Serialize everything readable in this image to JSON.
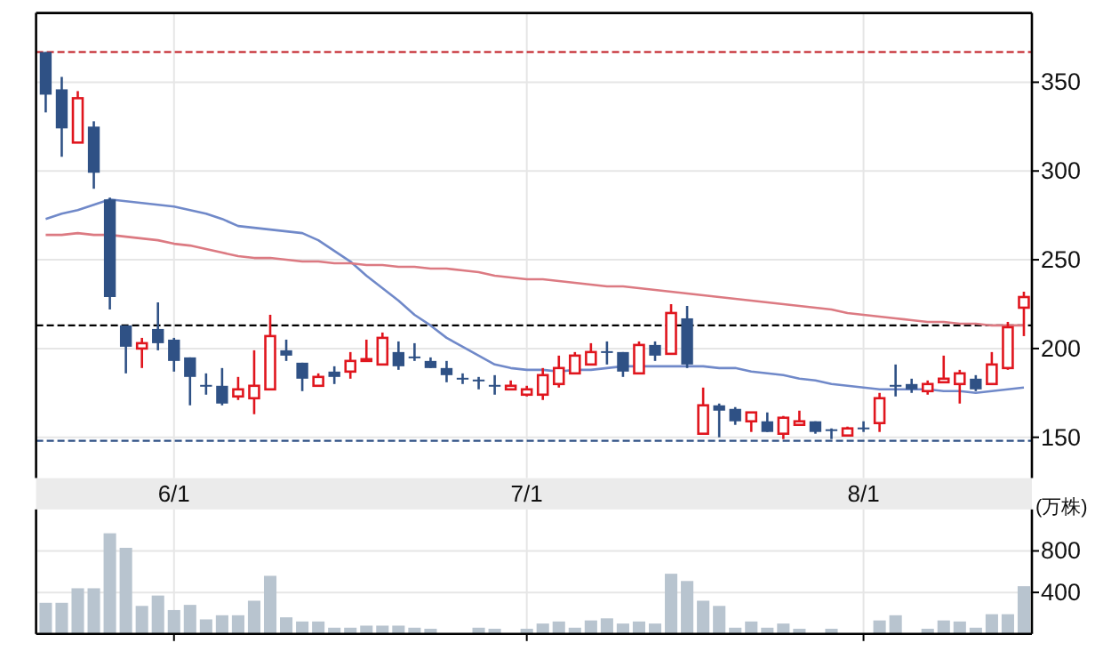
{
  "chart_data": [
    {
      "type": "candlestick",
      "categories": [
        null,
        null,
        null,
        null,
        null,
        null,
        null,
        null,
        "6/1",
        null,
        null,
        null,
        null,
        null,
        null,
        null,
        null,
        null,
        null,
        null,
        null,
        null,
        null,
        null,
        null,
        null,
        null,
        null,
        null,
        null,
        "7/1",
        null,
        null,
        null,
        null,
        null,
        null,
        null,
        null,
        null,
        null,
        null,
        null,
        null,
        null,
        null,
        null,
        null,
        null,
        null,
        null,
        "8/1",
        null,
        null,
        null,
        null,
        null,
        null,
        null,
        null,
        null,
        null
      ],
      "ohlc": [
        [
          367,
          367,
          333,
          343
        ],
        [
          346,
          353,
          308,
          324
        ],
        [
          316,
          345,
          316,
          341
        ],
        [
          325,
          328,
          290,
          299
        ],
        [
          284,
          285,
          222,
          229
        ],
        [
          213,
          213,
          186,
          201
        ],
        [
          200,
          206,
          189,
          203
        ],
        [
          211,
          226,
          199,
          203
        ],
        [
          205,
          206,
          187,
          193
        ],
        [
          195,
          195,
          168,
          184
        ],
        [
          179,
          186,
          174,
          179
        ],
        [
          179,
          189,
          168,
          169
        ],
        [
          173,
          184,
          171,
          177
        ],
        [
          172,
          199,
          163,
          179
        ],
        [
          177,
          219,
          177,
          207
        ],
        [
          199,
          205,
          193,
          196
        ],
        [
          192,
          192,
          176,
          183
        ],
        [
          179,
          186,
          179,
          184
        ],
        [
          187,
          190,
          180,
          184
        ],
        [
          187,
          198,
          183,
          193
        ],
        [
          193,
          205,
          193,
          194
        ],
        [
          191,
          209,
          191,
          206
        ],
        [
          198,
          204,
          188,
          190
        ],
        [
          195,
          203,
          193,
          195
        ],
        [
          193,
          195,
          189,
          189
        ],
        [
          189,
          193,
          181,
          185
        ],
        [
          183,
          186,
          180,
          183
        ],
        [
          182,
          184,
          177,
          181
        ],
        [
          179,
          185,
          174,
          179
        ],
        [
          177,
          182,
          177,
          179
        ],
        [
          174,
          179,
          173,
          177
        ],
        [
          174,
          189,
          171,
          185
        ],
        [
          180,
          196,
          178,
          189
        ],
        [
          186,
          198,
          186,
          196
        ],
        [
          191,
          203,
          191,
          198
        ],
        [
          198,
          204,
          191,
          198
        ],
        [
          198,
          198,
          184,
          187
        ],
        [
          186,
          204,
          186,
          202
        ],
        [
          202,
          204,
          193,
          196
        ],
        [
          197,
          225,
          197,
          220
        ],
        [
          217,
          224,
          189,
          191
        ],
        [
          152,
          178,
          152,
          168
        ],
        [
          168,
          169,
          150,
          165
        ],
        [
          166,
          167,
          157,
          159
        ],
        [
          159,
          164,
          153,
          164
        ],
        [
          159,
          164,
          153,
          153
        ],
        [
          152,
          162,
          149,
          161
        ],
        [
          157,
          165,
          157,
          159
        ],
        [
          159,
          159,
          152,
          153
        ],
        [
          154,
          155,
          149,
          154
        ],
        [
          151,
          156,
          151,
          155
        ],
        [
          155,
          159,
          153,
          155
        ],
        [
          158,
          175,
          153,
          172
        ],
        [
          179,
          191,
          173,
          179
        ],
        [
          180,
          183,
          175,
          177
        ],
        [
          176,
          182,
          174,
          180
        ],
        [
          181,
          196,
          181,
          183
        ],
        [
          180,
          188,
          169,
          186
        ],
        [
          183,
          185,
          176,
          177
        ],
        [
          180,
          198,
          180,
          191
        ],
        [
          189,
          215,
          188,
          212
        ],
        [
          223,
          232,
          207,
          229
        ]
      ],
      "colors": [
        "#2f5185",
        "#2f5185",
        "#e0161e",
        "#2f5185",
        "#2f5185",
        "#2f5185",
        "#e0161e",
        "#2f5185",
        "#2f5185",
        "#2f5185",
        "#2f5185",
        "#2f5185",
        "#e0161e",
        "#e0161e",
        "#e0161e",
        "#2f5185",
        "#2f5185",
        "#e0161e",
        "#2f5185",
        "#e0161e",
        "#e0161e",
        "#e0161e",
        "#2f5185",
        "#2f5185",
        "#2f5185",
        "#2f5185",
        "#2f5185",
        "#2f5185",
        "#2f5185",
        "#e0161e",
        "#e0161e",
        "#e0161e",
        "#e0161e",
        "#e0161e",
        "#e0161e",
        "#2f5185",
        "#2f5185",
        "#e0161e",
        "#2f5185",
        "#e0161e",
        "#2f5185",
        "#e0161e",
        "#2f5185",
        "#2f5185",
        "#e0161e",
        "#2f5185",
        "#e0161e",
        "#e0161e",
        "#2f5185",
        "#2f5185",
        "#e0161e",
        "#2f5185",
        "#e0161e",
        "#2f5185",
        "#2f5185",
        "#e0161e",
        "#e0161e",
        "#e0161e",
        "#2f5185",
        "#e0161e",
        "#e0161e",
        "#e0161e"
      ],
      "series": [
        {
          "type": "line",
          "color": "#7089c9",
          "values": [
            273,
            276,
            278,
            281,
            284,
            283,
            282,
            281,
            280,
            278,
            276,
            273,
            269,
            268,
            267,
            266,
            265,
            261,
            255,
            249,
            241,
            234,
            227,
            219,
            213,
            206,
            201,
            196,
            191,
            189,
            188,
            188,
            187,
            188,
            188,
            189,
            190,
            190,
            190,
            190,
            190,
            190,
            189,
            189,
            187,
            186,
            185,
            183,
            182,
            180,
            179,
            178,
            177,
            177,
            177,
            177,
            176,
            176,
            175,
            176,
            177,
            178
          ]
        },
        {
          "type": "line",
          "color": "#dc7a82",
          "values": [
            264,
            264,
            265,
            264,
            264,
            263,
            262,
            261,
            259,
            258,
            256,
            254,
            252,
            251,
            251,
            250,
            249,
            249,
            248,
            248,
            247,
            247,
            246,
            246,
            245,
            245,
            244,
            243,
            241,
            240,
            239,
            239,
            238,
            237,
            236,
            235,
            235,
            234,
            233,
            232,
            231,
            230,
            229,
            228,
            227,
            226,
            225,
            224,
            223,
            222,
            220,
            219,
            218,
            217,
            216,
            215,
            215,
            214,
            214,
            213,
            213,
            213
          ]
        }
      ],
      "ylim": [
        127,
        389
      ],
      "yticks": [
        150,
        200,
        250,
        300,
        350
      ],
      "grid": true,
      "line_style": "solid",
      "marker": "none",
      "ref_lines": [
        {
          "axis": "y",
          "value": 367,
          "color": "#c0161e",
          "line_style": "dashed"
        },
        {
          "axis": "y",
          "value": 213,
          "color": "#000000",
          "line_style": "dashed"
        },
        {
          "axis": "y",
          "value": 148,
          "color": "#2f5185",
          "line_style": "dashed"
        }
      ]
    },
    {
      "type": "bar",
      "categories": [
        null,
        null,
        null,
        null,
        null,
        null,
        null,
        null,
        null,
        null,
        null,
        null,
        null,
        null,
        null,
        null,
        null,
        null,
        null,
        null,
        null,
        null,
        null,
        null,
        null,
        null,
        null,
        null,
        null,
        null,
        null,
        null,
        null,
        null,
        null,
        null,
        null,
        null,
        null,
        null,
        null,
        null,
        null,
        null,
        null,
        null,
        null,
        null,
        null,
        null,
        null,
        null,
        null,
        null,
        null,
        null,
        null,
        null,
        null,
        null,
        null,
        null
      ],
      "values": [
        300,
        300,
        440,
        440,
        970,
        830,
        270,
        370,
        230,
        280,
        140,
        180,
        180,
        320,
        560,
        160,
        120,
        120,
        60,
        60,
        80,
        80,
        80,
        60,
        50,
        null,
        null,
        60,
        50,
        null,
        50,
        100,
        120,
        60,
        130,
        150,
        100,
        120,
        100,
        580,
        510,
        320,
        270,
        60,
        120,
        60,
        100,
        50,
        null,
        50,
        null,
        null,
        130,
        180,
        null,
        50,
        130,
        120,
        60,
        190,
        190,
        460
      ],
      "color": "#b8c4cf",
      "ylabel": "(万株)",
      "ylim": [
        0,
        1200
      ],
      "yticks": [
        400,
        800
      ],
      "grid": true,
      "tick_labels": "y"
    }
  ]
}
